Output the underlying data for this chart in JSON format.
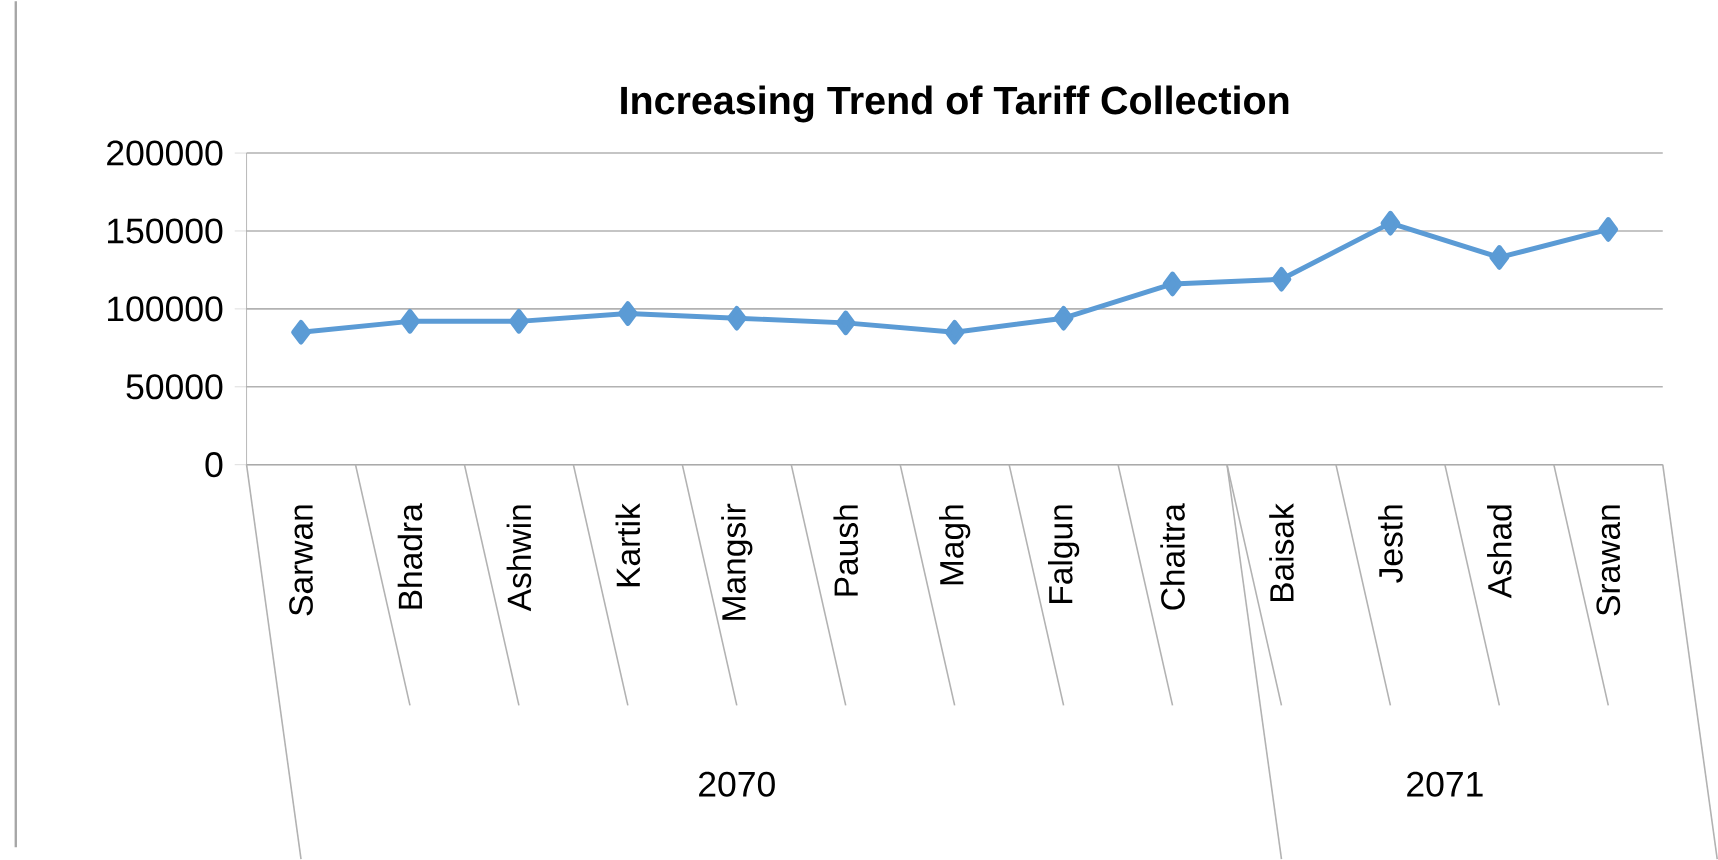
{
  "chart_data": {
    "type": "line",
    "title": "Increasing Trend of Tariff Collection",
    "categories": [
      "Sarwan",
      "Bhadra",
      "Ashwin",
      "Kartik",
      "Mangsir",
      "Paush",
      "Magh",
      "Falgun",
      "Chaitra",
      "Baisak",
      "Jesth",
      "Ashad",
      "Srawan"
    ],
    "series": [
      {
        "color": "#5b9bd5",
        "values": [
          85000,
          92000,
          92000,
          97000,
          94000,
          91000,
          85000,
          94000,
          116000,
          119000,
          155000,
          133000,
          151000
        ]
      }
    ],
    "ylim": [
      0,
      200000
    ],
    "yticks": [
      0,
      50000,
      100000,
      150000,
      200000
    ],
    "grid": "y",
    "marker": "diamond",
    "line_style": "solid",
    "annotations": [
      "2070",
      "2071"
    ]
  }
}
